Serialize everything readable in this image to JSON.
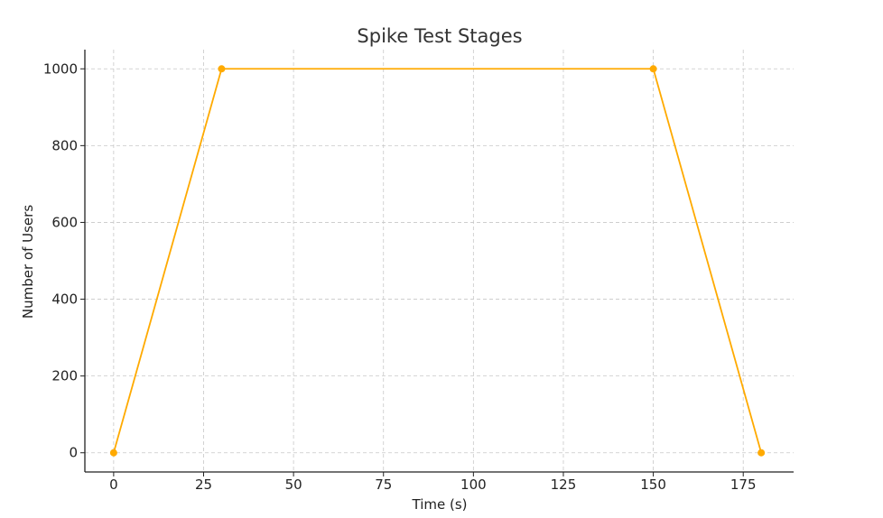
{
  "chart_data": {
    "type": "line",
    "title": "Spike Test Stages",
    "xlabel": "Time (s)",
    "ylabel": "Number of Users",
    "xlim": [
      -8,
      189
    ],
    "ylim": [
      -50,
      1050
    ],
    "xticks": [
      0,
      25,
      50,
      75,
      100,
      125,
      150,
      175
    ],
    "yticks": [
      0,
      200,
      400,
      600,
      800,
      1000
    ],
    "grid": true,
    "series": [
      {
        "x": [
          0,
          30,
          150,
          180
        ],
        "y": [
          0,
          1000,
          1000,
          0
        ],
        "color": "#ffaa00",
        "marker": "circle"
      }
    ]
  }
}
